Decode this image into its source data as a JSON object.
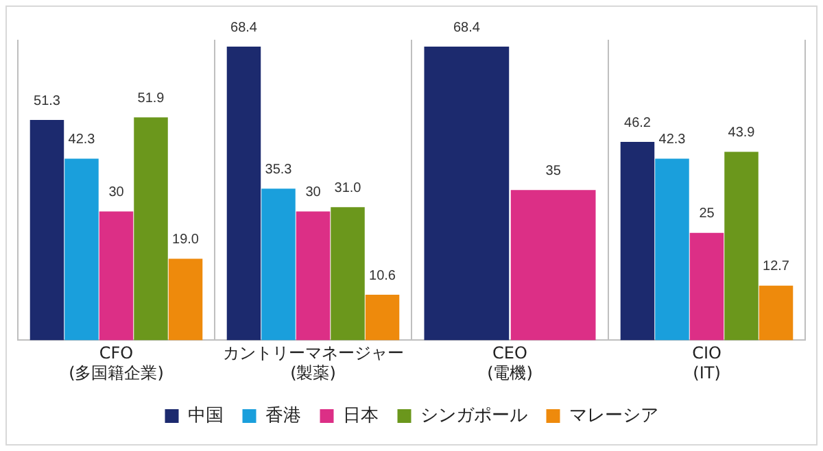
{
  "chart_data": {
    "type": "bar",
    "categories": [
      "CFO\n(多国籍企業)",
      "カントリーマネージャー\n(製薬)",
      "CEO\n(電機)",
      "CIO\n(IT)"
    ],
    "series": [
      {
        "name": "中国",
        "color": "#1c2a6e",
        "values": [
          51.3,
          68.4,
          68.4,
          46.2
        ],
        "value_labels": [
          "51.3",
          "68.4",
          "68.4",
          "46.2"
        ]
      },
      {
        "name": "香港",
        "color": "#1a9fdc",
        "values": [
          42.3,
          35.3,
          null,
          42.3
        ],
        "value_labels": [
          "42.3",
          "35.3",
          null,
          "42.3"
        ]
      },
      {
        "name": "日本",
        "color": "#dc2f86",
        "values": [
          30,
          30,
          35,
          25
        ],
        "value_labels": [
          "30",
          "30",
          "35",
          "25"
        ]
      },
      {
        "name": "シンガポール",
        "color": "#6b971c",
        "values": [
          51.9,
          31.0,
          null,
          43.9
        ],
        "value_labels": [
          "51.9",
          "31.0",
          null,
          "43.9"
        ]
      },
      {
        "name": "マレーシア",
        "color": "#ee8a0c",
        "values": [
          19.0,
          10.6,
          null,
          12.7
        ],
        "value_labels": [
          "19.0",
          "10.6",
          null,
          "12.7"
        ]
      }
    ],
    "grid": "x",
    "legend": "bottom"
  }
}
